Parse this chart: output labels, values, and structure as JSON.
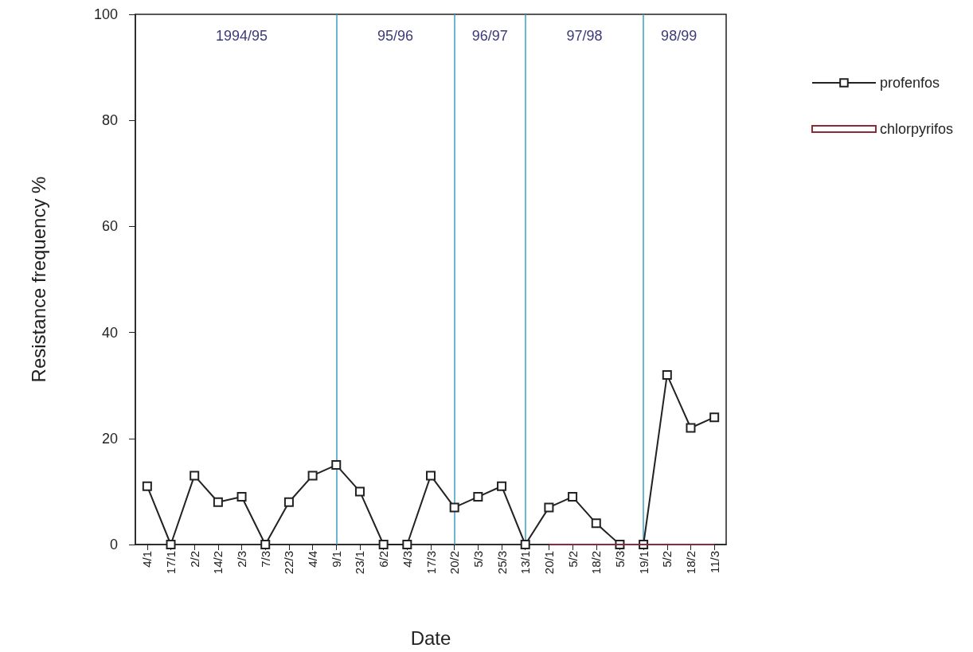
{
  "chart_data": {
    "type": "line",
    "xlabel": "Date",
    "ylabel": "Resistance frequency %",
    "categories": [
      "4/1",
      "17/1",
      "2/2",
      "14/2",
      "2/3",
      "7/3",
      "22/3",
      "4/4",
      "9/1",
      "23/1",
      "6/2",
      "4/3",
      "17/3",
      "20/2",
      "5/3",
      "25/3",
      "13/1",
      "20/1",
      "5/2",
      "18/2",
      "5/3",
      "19/1",
      "5/2",
      "18/2",
      "11/3"
    ],
    "series": [
      {
        "name": "profenfos",
        "color": "#222222",
        "marker": "square",
        "values": [
          11,
          0,
          13,
          8,
          9,
          0,
          8,
          13,
          15,
          10,
          0,
          0,
          13,
          7,
          9,
          11,
          0,
          7,
          9,
          4,
          0,
          0,
          32,
          22,
          24
        ]
      },
      {
        "name": "chlorpyrifos",
        "color": "#8b2a3a",
        "marker": "none",
        "values": [
          null,
          null,
          null,
          null,
          null,
          null,
          null,
          null,
          null,
          null,
          null,
          null,
          null,
          null,
          null,
          null,
          null,
          0,
          0,
          0,
          0,
          0,
          0,
          0,
          0
        ]
      }
    ],
    "ylim": [
      0,
      100
    ],
    "yticks": [
      0,
      20,
      40,
      60,
      80,
      100
    ],
    "grid": false,
    "legend": "right",
    "ref_lines": [
      {
        "axis": "x",
        "value": "9/1",
        "color": "#3a9fc0"
      },
      {
        "axis": "x",
        "value": "20/2",
        "color": "#3a9fc0"
      },
      {
        "axis": "x",
        "value": "13/1",
        "color": "#3a9fc0"
      },
      {
        "axis": "x",
        "value": "19/1",
        "color": "#3a9fc0"
      }
    ],
    "annotations": [
      "1994/95",
      "95/96",
      "96/97",
      "97/98",
      "98/99"
    ]
  }
}
